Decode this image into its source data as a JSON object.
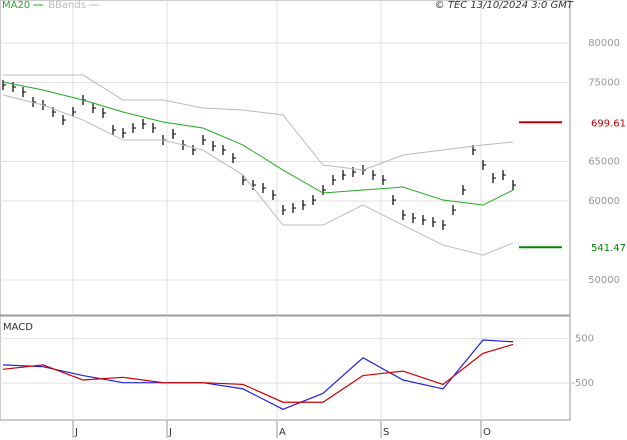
{
  "chart_data": [
    {
      "type": "price",
      "legend": [
        "MA20",
        "BBands"
      ],
      "source": "© TEC 13/10/2024 3:0 GMT",
      "xlim": [
        -0.3,
        56.7
      ],
      "ylim": [
        45570,
        85440
      ],
      "yticks": [
        80000,
        75000,
        65000,
        60000,
        50000
      ],
      "grid": true,
      "series": [
        {
          "color": "#000000",
          "style": "bars",
          "x": [
            0,
            1,
            2,
            3,
            4,
            5,
            6,
            7,
            8,
            9,
            10,
            11,
            12,
            13,
            14,
            15,
            16,
            17,
            18,
            19,
            20,
            21,
            22,
            23,
            24,
            25,
            26,
            27,
            28,
            29,
            30,
            31,
            32,
            33,
            34,
            35,
            36,
            37,
            38,
            39,
            40,
            41,
            42,
            43,
            44,
            45,
            46,
            47,
            48,
            49,
            50,
            51
          ],
          "values": [
            74679,
            74426,
            73793,
            72527,
            72147,
            71261,
            70248,
            71261,
            72780,
            71767,
            71134,
            68982,
            68602,
            69235,
            69742,
            69235,
            67716,
            68480,
            67083,
            66450,
            67716,
            66956,
            66450,
            65437,
            62652,
            62019,
            61639,
            60753,
            58854,
            59107,
            59487,
            60120,
            61386,
            62652,
            63285,
            63665,
            63918,
            63285,
            62652,
            60120,
            58221,
            57841,
            57588,
            57335,
            56955,
            58854,
            61386,
            66450,
            64551,
            62905,
            63285,
            62019
          ]
        },
        {
          "name": "MA20",
          "color": "#22aa22",
          "style": "line",
          "x": [
            0,
            4,
            8,
            12,
            16,
            20,
            24,
            28,
            32,
            36,
            40,
            44,
            48,
            51
          ],
          "values": [
            75059,
            74046,
            72780,
            71261,
            69995,
            69235,
            67083,
            63918,
            61006,
            61386,
            61766,
            60120,
            59487,
            61386
          ]
        },
        {
          "name": "BBands",
          "color": "#bbbbbb",
          "style": "band",
          "x": [
            0,
            4,
            8,
            12,
            16,
            20,
            24,
            28,
            32,
            36,
            40,
            44,
            48,
            51
          ],
          "values": [
            75945,
            75945,
            75945,
            72780,
            72780,
            71767,
            71514,
            70881,
            64551,
            63918,
            65817,
            66450,
            67083,
            67463
          ],
          "lower": [
            73413,
            72147,
            70248,
            67716,
            67716,
            66450,
            63285,
            56955,
            56955,
            59487,
            56955,
            54423,
            53157,
            54676
          ]
        }
      ],
      "levels": [
        {
          "value": 69961,
          "label": "699.61",
          "color": "#c00000"
        },
        {
          "value": 54147,
          "label": "541.47",
          "color": "#008800"
        }
      ]
    },
    {
      "type": "macd",
      "title": "MACD",
      "xlim": [
        -0.3,
        56.7
      ],
      "xticks": [
        {
          "value": 7,
          "label": "J"
        },
        {
          "value": 16.4,
          "label": "J"
        },
        {
          "value": 27.4,
          "label": "A"
        },
        {
          "value": 37.8,
          "label": "S"
        },
        {
          "value": 47.8,
          "label": "O"
        }
      ],
      "ylim": [
        -1330,
        1010
      ],
      "yticks": [
        500,
        -500
      ],
      "series": [
        {
          "color": "#2222dd",
          "x": [
            0,
            4,
            8,
            12,
            16,
            20,
            24,
            28,
            32,
            36,
            40,
            44,
            48,
            51
          ],
          "values": [
            -90,
            -130,
            -330,
            -490,
            -490,
            -490,
            -630,
            -1090,
            -730,
            70,
            -430,
            -630,
            470,
            430
          ]
        },
        {
          "color": "#cc0000",
          "x": [
            0,
            4,
            8,
            12,
            16,
            20,
            24,
            28,
            32,
            36,
            40,
            44,
            48,
            51
          ],
          "values": [
            -190,
            -90,
            -430,
            -370,
            -490,
            -490,
            -530,
            -930,
            -930,
            -330,
            -230,
            -530,
            170,
            370
          ]
        }
      ]
    }
  ]
}
